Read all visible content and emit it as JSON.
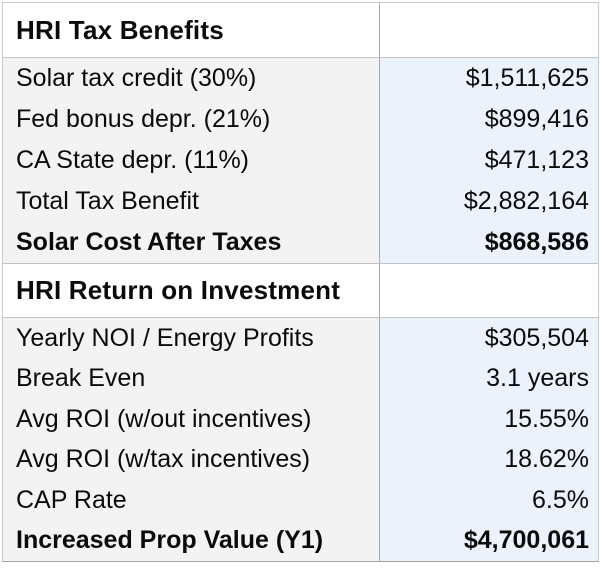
{
  "table": {
    "name": "HRI solar financial summary",
    "sections": [
      {
        "header": "HRI Tax Benefits",
        "rows": [
          {
            "label": "Solar tax credit (30%)",
            "value": "$1,511,625",
            "bold": false
          },
          {
            "label": "Fed bonus depr. (21%)",
            "value": "$899,416",
            "bold": false
          },
          {
            "label": "CA State depr. (11%)",
            "value": "$471,123",
            "bold": false
          },
          {
            "label": "Total Tax Benefit",
            "value": "$2,882,164",
            "bold": false
          },
          {
            "label": "Solar Cost After Taxes",
            "value": "$868,586",
            "bold": true
          }
        ]
      },
      {
        "header": "HRI Return on Investment",
        "rows": [
          {
            "label": "Yearly NOI / Energy Profits",
            "value": "$305,504",
            "bold": false
          },
          {
            "label": "Break Even",
            "value": "3.1 years",
            "bold": false
          },
          {
            "label": "Avg ROI (w/out incentives)",
            "value": "15.55%",
            "bold": false
          },
          {
            "label": "Avg ROI (w/tax incentives)",
            "value": "18.62%",
            "bold": false
          },
          {
            "label": "CAP Rate",
            "value": "6.5%",
            "bold": false
          },
          {
            "label": "Increased Prop Value (Y1)",
            "value": "$4,700,061",
            "bold": true
          }
        ]
      }
    ],
    "colors": {
      "label_cell_bg": "#f3f3f4",
      "value_cell_bg": "#ecf2fc",
      "header_bg": "#ffffff",
      "column_divider": "#a9a9ad",
      "section_border": "#c3c3c3",
      "outer_border": "#c9c9c9",
      "bottom_border": "#a2a2a2",
      "text": "#0b0b0b"
    }
  }
}
